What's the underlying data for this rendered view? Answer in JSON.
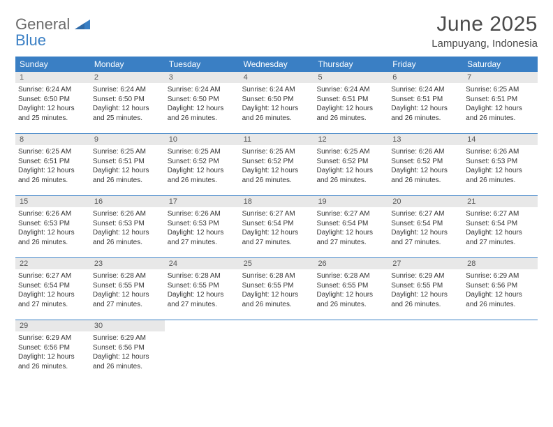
{
  "logo": {
    "text1": "General",
    "text2": "Blue"
  },
  "title": "June 2025",
  "location": "Lampuyang, Indonesia",
  "colors": {
    "header_bg": "#3a7fc4",
    "header_text": "#ffffff",
    "daynum_bg": "#e8e8e8",
    "border": "#3a7fc4",
    "logo_gray": "#6b6b6b",
    "logo_blue": "#3a7fc4"
  },
  "dayNames": [
    "Sunday",
    "Monday",
    "Tuesday",
    "Wednesday",
    "Thursday",
    "Friday",
    "Saturday"
  ],
  "weeks": [
    [
      {
        "n": "1",
        "sr": "Sunrise: 6:24 AM",
        "ss": "Sunset: 6:50 PM",
        "dl": "Daylight: 12 hours and 25 minutes."
      },
      {
        "n": "2",
        "sr": "Sunrise: 6:24 AM",
        "ss": "Sunset: 6:50 PM",
        "dl": "Daylight: 12 hours and 25 minutes."
      },
      {
        "n": "3",
        "sr": "Sunrise: 6:24 AM",
        "ss": "Sunset: 6:50 PM",
        "dl": "Daylight: 12 hours and 26 minutes."
      },
      {
        "n": "4",
        "sr": "Sunrise: 6:24 AM",
        "ss": "Sunset: 6:50 PM",
        "dl": "Daylight: 12 hours and 26 minutes."
      },
      {
        "n": "5",
        "sr": "Sunrise: 6:24 AM",
        "ss": "Sunset: 6:51 PM",
        "dl": "Daylight: 12 hours and 26 minutes."
      },
      {
        "n": "6",
        "sr": "Sunrise: 6:24 AM",
        "ss": "Sunset: 6:51 PM",
        "dl": "Daylight: 12 hours and 26 minutes."
      },
      {
        "n": "7",
        "sr": "Sunrise: 6:25 AM",
        "ss": "Sunset: 6:51 PM",
        "dl": "Daylight: 12 hours and 26 minutes."
      }
    ],
    [
      {
        "n": "8",
        "sr": "Sunrise: 6:25 AM",
        "ss": "Sunset: 6:51 PM",
        "dl": "Daylight: 12 hours and 26 minutes."
      },
      {
        "n": "9",
        "sr": "Sunrise: 6:25 AM",
        "ss": "Sunset: 6:51 PM",
        "dl": "Daylight: 12 hours and 26 minutes."
      },
      {
        "n": "10",
        "sr": "Sunrise: 6:25 AM",
        "ss": "Sunset: 6:52 PM",
        "dl": "Daylight: 12 hours and 26 minutes."
      },
      {
        "n": "11",
        "sr": "Sunrise: 6:25 AM",
        "ss": "Sunset: 6:52 PM",
        "dl": "Daylight: 12 hours and 26 minutes."
      },
      {
        "n": "12",
        "sr": "Sunrise: 6:25 AM",
        "ss": "Sunset: 6:52 PM",
        "dl": "Daylight: 12 hours and 26 minutes."
      },
      {
        "n": "13",
        "sr": "Sunrise: 6:26 AM",
        "ss": "Sunset: 6:52 PM",
        "dl": "Daylight: 12 hours and 26 minutes."
      },
      {
        "n": "14",
        "sr": "Sunrise: 6:26 AM",
        "ss": "Sunset: 6:53 PM",
        "dl": "Daylight: 12 hours and 26 minutes."
      }
    ],
    [
      {
        "n": "15",
        "sr": "Sunrise: 6:26 AM",
        "ss": "Sunset: 6:53 PM",
        "dl": "Daylight: 12 hours and 26 minutes."
      },
      {
        "n": "16",
        "sr": "Sunrise: 6:26 AM",
        "ss": "Sunset: 6:53 PM",
        "dl": "Daylight: 12 hours and 26 minutes."
      },
      {
        "n": "17",
        "sr": "Sunrise: 6:26 AM",
        "ss": "Sunset: 6:53 PM",
        "dl": "Daylight: 12 hours and 27 minutes."
      },
      {
        "n": "18",
        "sr": "Sunrise: 6:27 AM",
        "ss": "Sunset: 6:54 PM",
        "dl": "Daylight: 12 hours and 27 minutes."
      },
      {
        "n": "19",
        "sr": "Sunrise: 6:27 AM",
        "ss": "Sunset: 6:54 PM",
        "dl": "Daylight: 12 hours and 27 minutes."
      },
      {
        "n": "20",
        "sr": "Sunrise: 6:27 AM",
        "ss": "Sunset: 6:54 PM",
        "dl": "Daylight: 12 hours and 27 minutes."
      },
      {
        "n": "21",
        "sr": "Sunrise: 6:27 AM",
        "ss": "Sunset: 6:54 PM",
        "dl": "Daylight: 12 hours and 27 minutes."
      }
    ],
    [
      {
        "n": "22",
        "sr": "Sunrise: 6:27 AM",
        "ss": "Sunset: 6:54 PM",
        "dl": "Daylight: 12 hours and 27 minutes."
      },
      {
        "n": "23",
        "sr": "Sunrise: 6:28 AM",
        "ss": "Sunset: 6:55 PM",
        "dl": "Daylight: 12 hours and 27 minutes."
      },
      {
        "n": "24",
        "sr": "Sunrise: 6:28 AM",
        "ss": "Sunset: 6:55 PM",
        "dl": "Daylight: 12 hours and 27 minutes."
      },
      {
        "n": "25",
        "sr": "Sunrise: 6:28 AM",
        "ss": "Sunset: 6:55 PM",
        "dl": "Daylight: 12 hours and 26 minutes."
      },
      {
        "n": "26",
        "sr": "Sunrise: 6:28 AM",
        "ss": "Sunset: 6:55 PM",
        "dl": "Daylight: 12 hours and 26 minutes."
      },
      {
        "n": "27",
        "sr": "Sunrise: 6:29 AM",
        "ss": "Sunset: 6:55 PM",
        "dl": "Daylight: 12 hours and 26 minutes."
      },
      {
        "n": "28",
        "sr": "Sunrise: 6:29 AM",
        "ss": "Sunset: 6:56 PM",
        "dl": "Daylight: 12 hours and 26 minutes."
      }
    ],
    [
      {
        "n": "29",
        "sr": "Sunrise: 6:29 AM",
        "ss": "Sunset: 6:56 PM",
        "dl": "Daylight: 12 hours and 26 minutes."
      },
      {
        "n": "30",
        "sr": "Sunrise: 6:29 AM",
        "ss": "Sunset: 6:56 PM",
        "dl": "Daylight: 12 hours and 26 minutes."
      },
      null,
      null,
      null,
      null,
      null
    ]
  ]
}
